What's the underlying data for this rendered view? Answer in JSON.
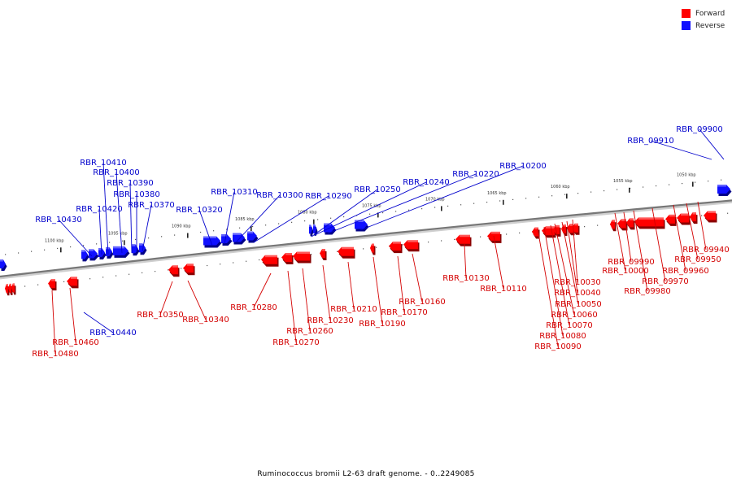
{
  "caption": "Ruminococcus bromii L2-63 draft genome. - 0..2249085",
  "legend": {
    "forward": {
      "label": "Forward",
      "color": "#ff0000"
    },
    "reverse": {
      "label": "Reverse",
      "color": "#1010ff"
    }
  },
  "colors": {
    "forward_label": "#d40000",
    "reverse_label": "#0000cc",
    "backbone": "#777777"
  },
  "ticks": [
    "1050 kbp",
    "1055 kbp",
    "1060 kbp",
    "1065 kbp",
    "1070 kbp",
    "1075 kbp",
    "1080 kbp",
    "1085 kbp",
    "1090 kbp",
    "1095 kbp",
    "1100 kbp"
  ],
  "labels": {
    "forward": [
      "RBR_09940",
      "RBR_09950",
      "RBR_09960",
      "RBR_09970",
      "RBR_09980",
      "RBR_09990",
      "RBR_10000",
      "RBR_10030",
      "RBR_10040",
      "RBR_10050",
      "RBR_10060",
      "RBR_10070",
      "RBR_10080",
      "RBR_10090",
      "RBR_10110",
      "RBR_10130",
      "RBR_10160",
      "RBR_10170",
      "RBR_10190",
      "RBR_10210",
      "RBR_10230",
      "RBR_10260",
      "RBR_10270",
      "RBR_10280",
      "RBR_10340",
      "RBR_10350",
      "RBR_10460",
      "RBR_10480"
    ],
    "reverse": [
      "RBR_09900",
      "RBR_09910",
      "RBR_10200",
      "RBR_10220",
      "RBR_10240",
      "RBR_10250",
      "RBR_10290",
      "RBR_10300",
      "RBR_10310",
      "RBR_10320",
      "RBR_10370",
      "RBR_10380",
      "RBR_10390",
      "RBR_10400",
      "RBR_10410",
      "RBR_10420",
      "RBR_10430",
      "RBR_10440"
    ]
  }
}
